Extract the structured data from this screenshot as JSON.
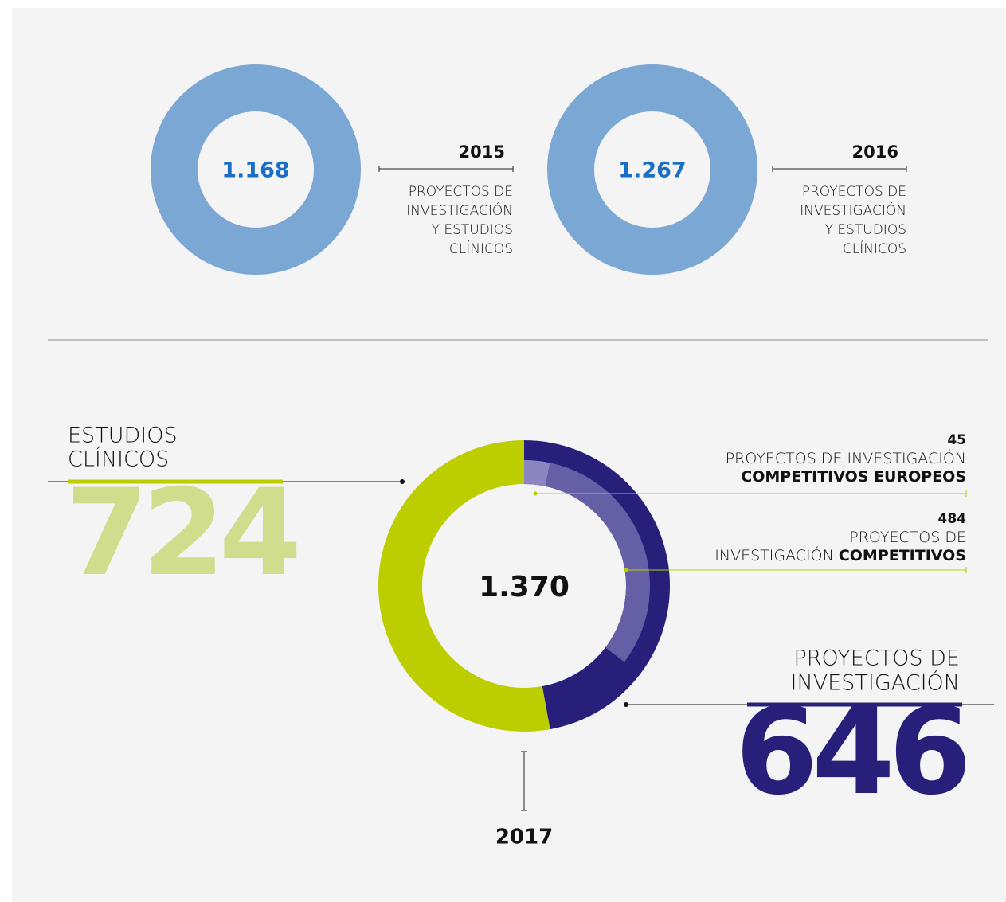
{
  "chart_data": [
    {
      "type": "ring",
      "title": "2015",
      "values": [
        1168
      ],
      "value_labels": [
        "1.168"
      ],
      "color": "#7ba7d5",
      "label_color": "#1a6fc4",
      "label_lines": [
        "PROYECTOS DE",
        "INVESTIGACIÓN",
        "Y ESTUDIOS",
        "CLÍNICOS"
      ]
    },
    {
      "type": "ring",
      "title": "2016",
      "values": [
        1267
      ],
      "value_labels": [
        "1.267"
      ],
      "color": "#7ba7d5",
      "label_color": "#1a6fc4",
      "label_lines": [
        "PROYECTOS DE",
        "INVESTIGACIÓN",
        "Y ESTUDIOS",
        "CLÍNICOS"
      ]
    },
    {
      "type": "donut",
      "title": "2017",
      "total": 1370,
      "total_label": "1.370",
      "categories": [
        [
          "ESTUDIOS",
          "CLÍNICOS"
        ],
        [
          "PROYECTOS DE",
          "INVESTIGACIÓN"
        ]
      ],
      "values": [
        724,
        646
      ],
      "colors": [
        "#bccd00",
        "#271f7a"
      ],
      "label_colors": [
        "#cfdd8c",
        "#271f7a"
      ],
      "sub_series": [
        {
          "name_lines": [
            {
              "text": "PROYECTOS DE INVESTIGACIÓN"
            },
            {
              "bold": "COMPETITIVOS EUROPEOS"
            }
          ],
          "value": 45,
          "color": "#8b86c0"
        },
        {
          "name_lines": [
            {
              "text": "PROYECTOS DE"
            },
            {
              "text": "INVESTIGACIÓN",
              "bold": "COMPETITIVOS"
            }
          ],
          "value": 484,
          "color": "#6560a5"
        }
      ]
    }
  ]
}
